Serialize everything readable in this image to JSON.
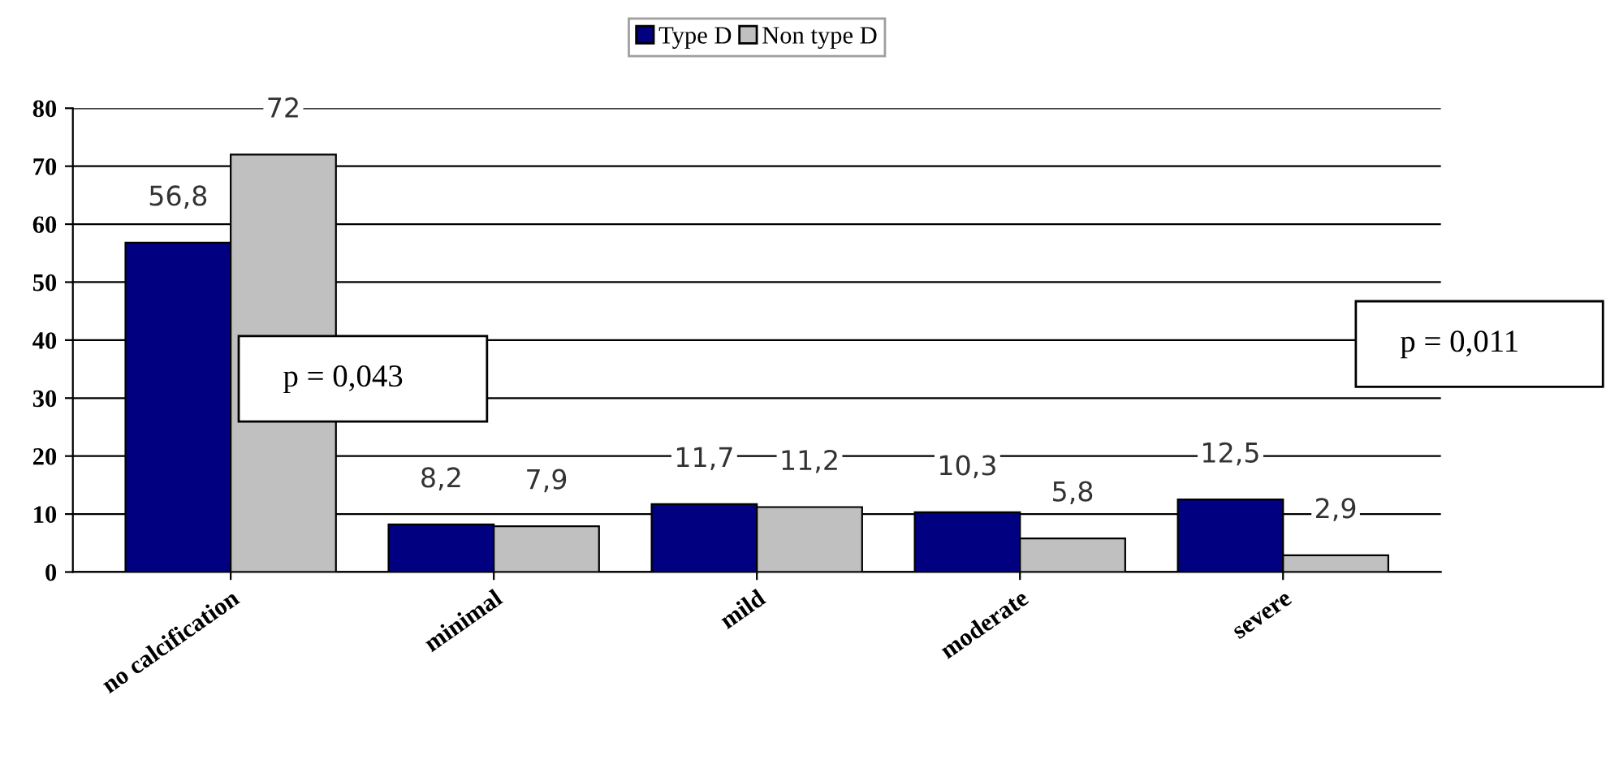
{
  "chart_data": {
    "type": "bar",
    "categories": [
      "no calcification",
      "minimal",
      "mild",
      "moderate",
      "severe"
    ],
    "series": [
      {
        "name": "Type D",
        "color": "#000080",
        "values": [
          56.8,
          8.2,
          11.7,
          10.3,
          12.5
        ],
        "value_labels": [
          "56,8",
          "8,2",
          "11,7",
          "10,3",
          "12,5"
        ]
      },
      {
        "name": "Non type D",
        "color": "#c0c0c0",
        "values": [
          72,
          7.9,
          11.2,
          5.8,
          2.9
        ],
        "value_labels": [
          "72",
          "7,9",
          "11,2",
          "5,8",
          "2,9"
        ]
      }
    ],
    "ylim": [
      0,
      80
    ],
    "yticks": [
      0,
      10,
      20,
      30,
      40,
      50,
      60,
      70,
      80
    ],
    "grid": "y",
    "legend": "top",
    "annotations": [
      "p = 0,043",
      "p = 0,011"
    ]
  }
}
